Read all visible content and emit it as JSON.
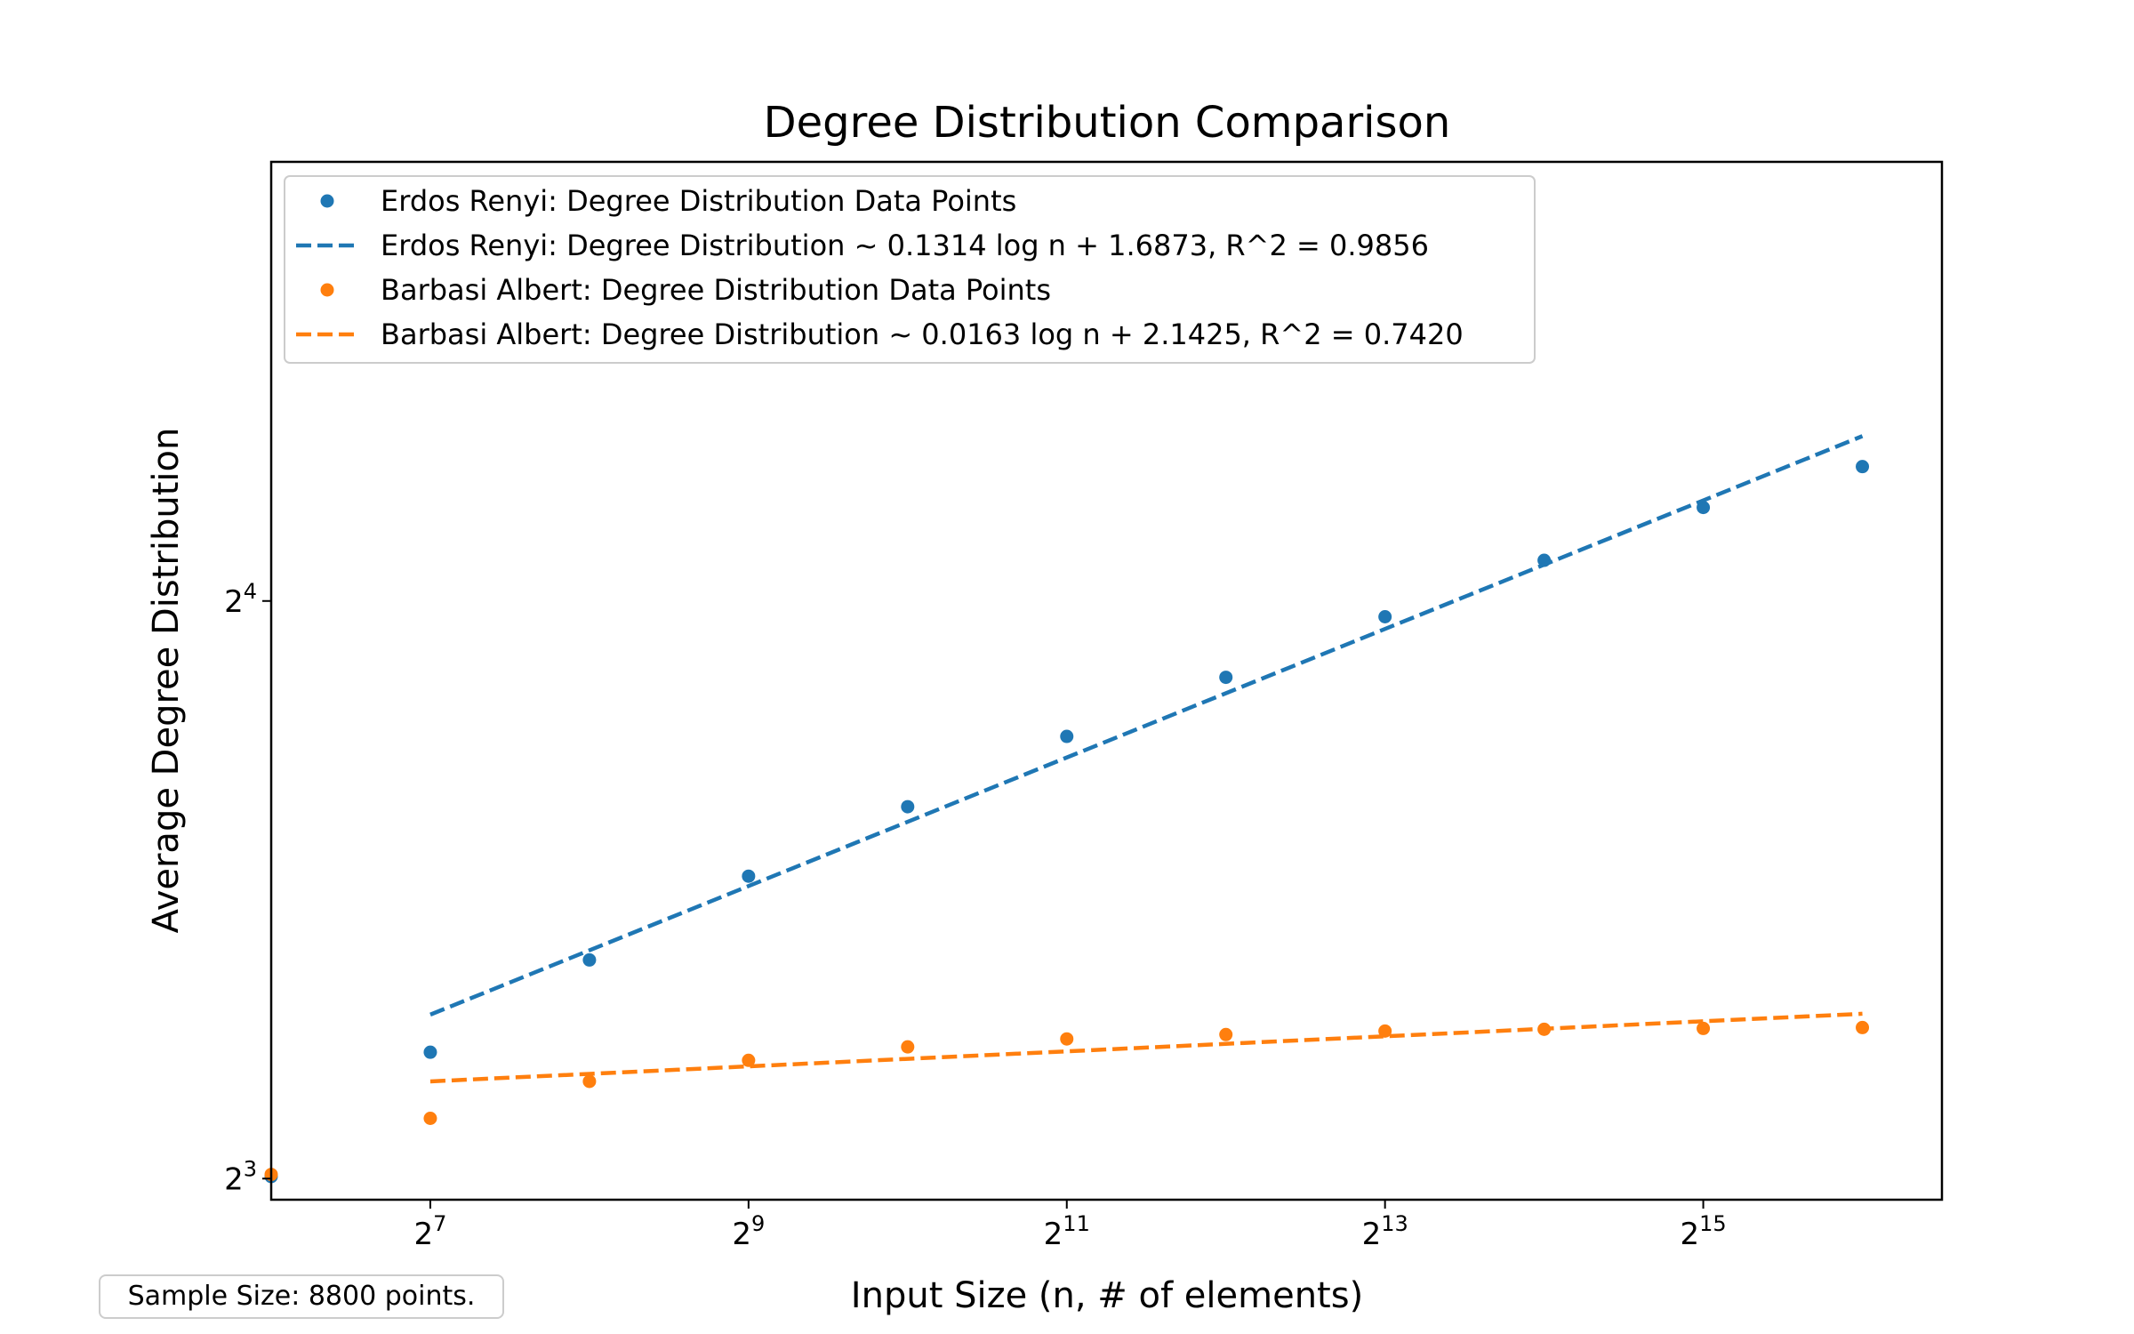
{
  "chart_data": {
    "type": "scatter",
    "title": "Degree Distribution Comparison",
    "xlabel": "Input Size (n, # of elements)",
    "ylabel": "Average Degree Distribution",
    "x_scale": "log2",
    "y_scale": "log2",
    "x_range": [
      64,
      92682
    ],
    "y_range": [
      7.8,
      27.1
    ],
    "x_ticks": [
      {
        "value": 128,
        "base": "2",
        "exp": "7"
      },
      {
        "value": 512,
        "base": "2",
        "exp": "9"
      },
      {
        "value": 2048,
        "base": "2",
        "exp": "11"
      },
      {
        "value": 8192,
        "base": "2",
        "exp": "13"
      },
      {
        "value": 32768,
        "base": "2",
        "exp": "15"
      }
    ],
    "y_ticks": [
      {
        "value": 8,
        "base": "2",
        "exp": "3"
      },
      {
        "value": 16,
        "base": "2",
        "exp": "4"
      }
    ],
    "grid": false,
    "legend_position": "upper-left",
    "series": [
      {
        "name": "Erdos Renyi: Degree Distribution Data Points",
        "kind": "points",
        "color": "#1f77b4",
        "x": [
          64,
          128,
          256,
          512,
          1024,
          2048,
          4096,
          8192,
          16384,
          32768,
          65536
        ],
        "y": [
          8.02,
          9.31,
          10.4,
          11.5,
          12.5,
          13.6,
          14.6,
          15.7,
          16.8,
          17.9,
          18.8
        ]
      },
      {
        "name": "Erdos Renyi: Degree Distribution ~ 0.1314 log n + 1.6873, R^2 = 0.9856",
        "kind": "dashed-line",
        "color": "#1f77b4",
        "x": [
          128,
          65536
        ],
        "y": [
          9.74,
          19.5
        ]
      },
      {
        "name": "Barbasi Albert: Degree Distribution Data Points",
        "kind": "points",
        "color": "#ff7f0e",
        "x": [
          64,
          128,
          256,
          512,
          1024,
          2048,
          4096,
          8192,
          16384,
          32768,
          65536
        ],
        "y": [
          8.04,
          8.6,
          8.99,
          9.22,
          9.37,
          9.46,
          9.51,
          9.55,
          9.57,
          9.58,
          9.59
        ]
      },
      {
        "name": "Barbasi Albert: Degree Distribution ~ 0.0163 log n + 2.1425, R^2 = 0.7420",
        "kind": "dashed-line",
        "color": "#ff7f0e",
        "x": [
          128,
          65536
        ],
        "y": [
          8.99,
          9.75
        ]
      }
    ],
    "annotation": "Sample Size: 8800 points."
  }
}
